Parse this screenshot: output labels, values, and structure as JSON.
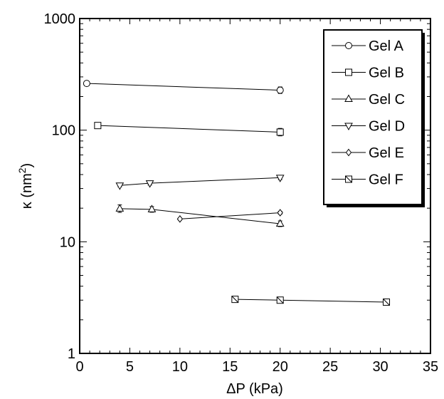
{
  "chart_data": {
    "type": "scatter",
    "xlabel": "ΔP (kPa)",
    "ylabel_main": "κ (nm",
    "ylabel_sup": "2",
    "ylabel_close": ")",
    "xlim": [
      0,
      35
    ],
    "ylim": [
      1,
      1000
    ],
    "yscale": "log",
    "x_ticks": [
      0,
      5,
      10,
      15,
      20,
      25,
      30,
      35
    ],
    "x_tick_labels": [
      "0",
      "5",
      "10",
      "15",
      "20",
      "25",
      "30",
      "35"
    ],
    "y_ticks": [
      1,
      10,
      100,
      1000
    ],
    "y_tick_labels": [
      "1",
      "10",
      "100",
      "1000"
    ],
    "grid": false,
    "legend_position": "top-right",
    "series": [
      {
        "name": "Gel A",
        "marker": "circle",
        "x": [
          0.7,
          20
        ],
        "y": [
          262,
          228
        ],
        "err": [
          0.05,
          0.07
        ]
      },
      {
        "name": "Gel B",
        "marker": "square",
        "x": [
          1.8,
          20
        ],
        "y": [
          110,
          96
        ],
        "err": [
          0.05,
          0.08
        ]
      },
      {
        "name": "Gel C",
        "marker": "triangle-up",
        "x": [
          4,
          7.2,
          20
        ],
        "y": [
          19.8,
          19.5,
          14.5
        ],
        "err": [
          0.08,
          0.06,
          0.06
        ]
      },
      {
        "name": "Gel D",
        "marker": "triangle-down",
        "x": [
          4,
          7,
          20
        ],
        "y": [
          32,
          33.5,
          37.5
        ],
        "err": [
          0.03,
          0.04,
          0.04
        ]
      },
      {
        "name": "Gel E",
        "marker": "diamond",
        "x": [
          10,
          20
        ],
        "y": [
          16,
          18.2
        ],
        "err": [
          0.02,
          0.03
        ]
      },
      {
        "name": "Gel F",
        "marker": "square-slash",
        "x": [
          15.5,
          20,
          30.6
        ],
        "y": [
          3.05,
          3.0,
          2.88
        ],
        "err": [
          0.01,
          0.01,
          0.01
        ]
      }
    ]
  }
}
